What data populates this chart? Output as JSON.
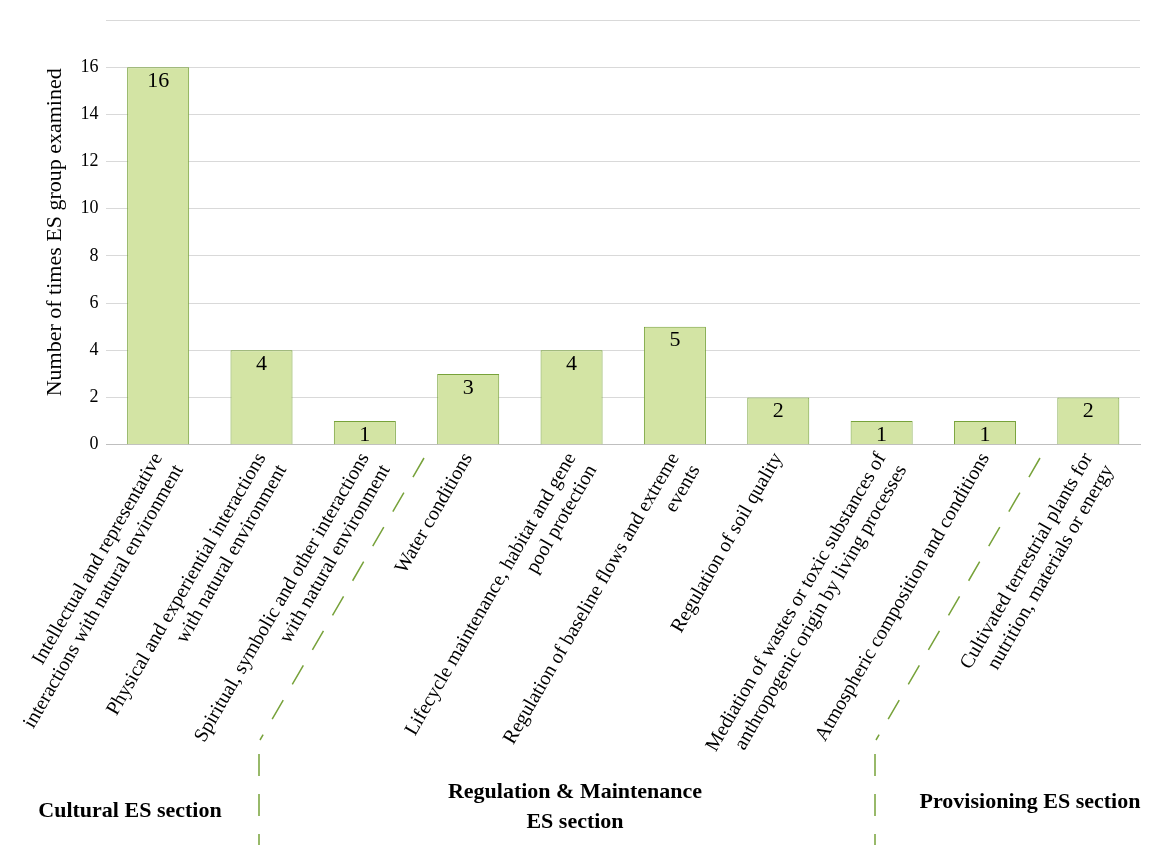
{
  "chart_data": {
    "type": "bar",
    "ylabel": "Number of times ES group examined",
    "categories": [
      "Intellectual and representative interactions with natural environment",
      "Physical and experiential interactions with natural environment",
      "Spiritual, symbolic and other interactions with natural environment",
      "Water conditions",
      "Lifecycle maintenance, habitat and gene pool protection",
      "Regulation of baseline flows and extreme events",
      "Regulation of soil quality",
      "Mediation of wastes or toxic substances of anthropogenic origin by living processes",
      "Atmospheric composition and conditions",
      "Cultivated terrestrial plants for nutrition, materials or energy"
    ],
    "values": [
      16,
      4,
      1,
      3,
      4,
      5,
      2,
      1,
      1,
      2
    ],
    "color": "#d3e4a4",
    "ylim": [
      0,
      18
    ],
    "yticks": [
      0,
      2,
      4,
      6,
      8,
      10,
      12,
      14,
      16,
      {
        "value": 18,
        "label": null
      }
    ],
    "grid": "y",
    "legend": false,
    "data_labels": true,
    "annotations": [
      "Cultural ES section",
      "Regulation & Maintenance ES section",
      "Provisioning ES section"
    ]
  }
}
